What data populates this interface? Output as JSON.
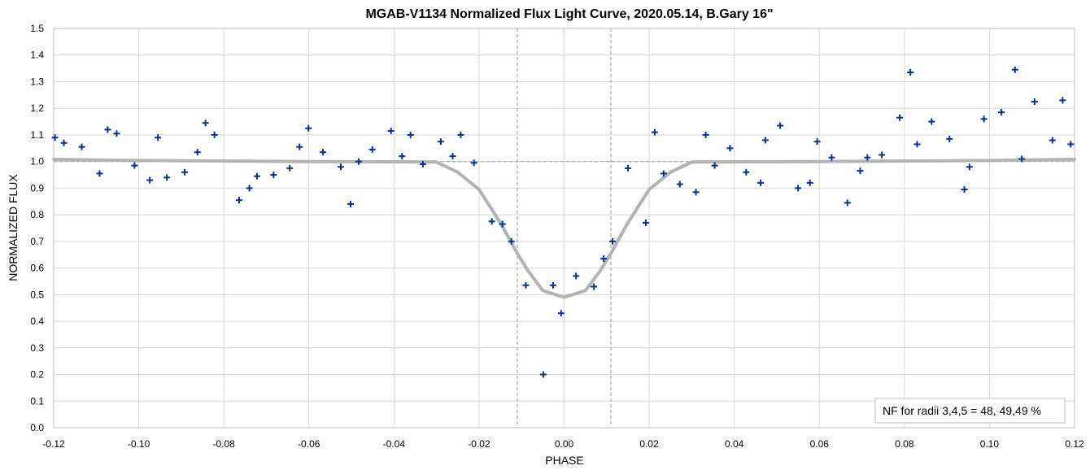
{
  "chart_data": {
    "type": "scatter",
    "title": "MGAB-V1134 Normalized Flux Light Curve, 2020.05.14, B.Gary 16\"",
    "xlabel": "PHASE",
    "ylabel": "NORMALIZED FLUX",
    "xlim": [
      -0.12,
      0.12
    ],
    "ylim": [
      0.0,
      1.5
    ],
    "x_ticks": [
      -0.12,
      -0.1,
      -0.08,
      -0.06,
      -0.04,
      -0.02,
      0.0,
      0.02,
      0.04,
      0.06,
      0.08,
      0.1,
      0.12
    ],
    "x_tick_labels": [
      "-0.12",
      "-0.10",
      "-0.08",
      "-0.06",
      "-0.04",
      "-0.02",
      "0.00",
      "0.02",
      "0.04",
      "0.06",
      "0.08",
      "0.10",
      "0.12"
    ],
    "y_ticks": [
      0.0,
      0.1,
      0.2,
      0.3,
      0.4,
      0.5,
      0.6,
      0.7,
      0.8,
      0.9,
      1.0,
      1.1,
      1.2,
      1.3,
      1.4,
      1.5
    ],
    "y_tick_labels": [
      "0.0",
      "0.1",
      "0.2",
      "0.3",
      "0.4",
      "0.5",
      "0.6",
      "0.7",
      "0.8",
      "0.9",
      "1.0",
      "1.1",
      "1.2",
      "1.3",
      "1.4",
      "1.5"
    ],
    "grid": true,
    "legend": "none",
    "annotation": "NF for radii 3,4,5 = 48, 49,49 %",
    "annotation_position": "bottom-right",
    "reference_lines": {
      "horizontal_y": 1.0,
      "vertical_x": [
        -0.011,
        0.011
      ]
    },
    "colors": {
      "points": "#003399",
      "model": "#b3b3b3",
      "reference": "#a6a6a6",
      "grid": "#d9d9d9"
    },
    "series": [
      {
        "kind": "points",
        "marker": "plus",
        "x": [
          -0.1197,
          -0.1176,
          -0.1134,
          -0.1092,
          -0.1073,
          -0.1052,
          -0.101,
          -0.0974,
          -0.0955,
          -0.0934,
          -0.0892,
          -0.0862,
          -0.0843,
          -0.0822,
          -0.0764,
          -0.074,
          -0.0722,
          -0.0683,
          -0.0645,
          -0.0622,
          -0.0601,
          -0.0567,
          -0.0525,
          -0.0502,
          -0.0483,
          -0.0451,
          -0.0407,
          -0.0381,
          -0.0361,
          -0.0332,
          -0.029,
          -0.0262,
          -0.0243,
          -0.0212,
          -0.017,
          -0.0145,
          -0.0124,
          -0.009,
          -0.0049,
          -0.0026,
          -0.0007,
          0.0028,
          0.007,
          0.0093,
          0.0114,
          0.015,
          0.0192,
          0.0213,
          0.0234,
          0.0272,
          0.031,
          0.0333,
          0.0354,
          0.039,
          0.0428,
          0.0462,
          0.0473,
          0.0508,
          0.055,
          0.0578,
          0.0595,
          0.0629,
          0.0666,
          0.0696,
          0.0713,
          0.0747,
          0.0789,
          0.0814,
          0.083,
          0.0864,
          0.0906,
          0.0941,
          0.0953,
          0.0987,
          0.1028,
          0.106,
          0.1076,
          0.1106,
          0.1148,
          0.1172,
          0.1191
        ],
        "y": [
          1.09,
          1.07,
          1.055,
          0.955,
          1.12,
          1.105,
          0.985,
          0.93,
          1.09,
          0.94,
          0.96,
          1.035,
          1.145,
          1.1,
          0.855,
          0.9,
          0.945,
          0.95,
          0.975,
          1.055,
          1.125,
          1.035,
          0.98,
          0.84,
          1.0,
          1.045,
          1.115,
          1.02,
          1.1,
          0.99,
          1.075,
          1.02,
          1.1,
          0.995,
          0.775,
          0.765,
          0.7,
          0.535,
          0.2,
          0.535,
          0.43,
          0.57,
          0.53,
          0.635,
          0.7,
          0.975,
          0.77,
          1.11,
          0.955,
          0.915,
          0.885,
          1.1,
          0.985,
          1.05,
          0.96,
          0.92,
          1.08,
          1.135,
          0.9,
          0.92,
          1.075,
          1.015,
          0.845,
          0.965,
          1.015,
          1.025,
          1.165,
          1.335,
          1.065,
          1.15,
          1.085,
          0.895,
          0.98,
          1.16,
          1.185,
          1.345,
          1.01,
          1.225,
          1.08,
          1.23,
          1.065
        ]
      },
      {
        "kind": "model",
        "x": [
          -0.12,
          -0.1,
          -0.08,
          -0.06,
          -0.04,
          -0.03,
          -0.025,
          -0.02,
          -0.015,
          -0.011,
          -0.0085,
          -0.005,
          0.0,
          0.005,
          0.0085,
          0.011,
          0.015,
          0.02,
          0.025,
          0.03,
          0.04,
          0.06,
          0.08,
          0.1,
          0.12
        ],
        "y": [
          1.008,
          1.004,
          1.002,
          1.0,
          0.999,
          0.998,
          0.96,
          0.895,
          0.77,
          0.655,
          0.59,
          0.515,
          0.49,
          0.515,
          0.59,
          0.655,
          0.77,
          0.895,
          0.96,
          0.998,
          0.999,
          1.0,
          1.002,
          1.004,
          1.008
        ]
      }
    ]
  }
}
